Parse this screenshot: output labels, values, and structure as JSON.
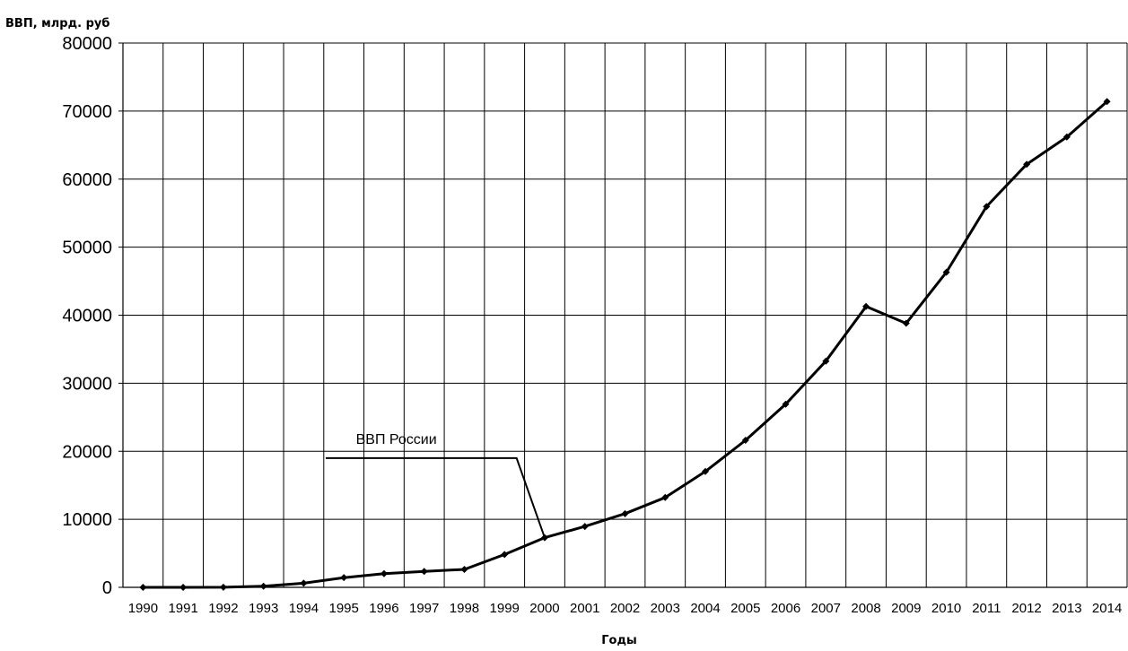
{
  "chart_data": {
    "type": "line",
    "ylabel": "ВВП, млрд. руб",
    "xlabel": "Годы",
    "ylim": [
      0,
      80000
    ],
    "yticks": [
      0,
      10000,
      20000,
      30000,
      40000,
      50000,
      60000,
      70000,
      80000
    ],
    "grid": true,
    "categories": [
      "1990",
      "1991",
      "1992",
      "1993",
      "1994",
      "1995",
      "1996",
      "1997",
      "1998",
      "1999",
      "2000",
      "2001",
      "2002",
      "2003",
      "2004",
      "2005",
      "2006",
      "2007",
      "2008",
      "2009",
      "2010",
      "2011",
      "2012",
      "2013",
      "2014"
    ],
    "series": [
      {
        "name": "ВВП России",
        "values": [
          0.6,
          1.4,
          19,
          172,
          611,
          1429,
          2008,
          2343,
          2630,
          4823,
          7306,
          8944,
          10831,
          13208,
          17027,
          21609,
          26917,
          33248,
          41277,
          38807,
          46309,
          55967,
          62177,
          66190,
          71406
        ]
      }
    ],
    "annotation": {
      "text": "ВВП России",
      "points_to": "2000"
    },
    "colors": {
      "line": "#000000",
      "grid": "#000000"
    }
  }
}
